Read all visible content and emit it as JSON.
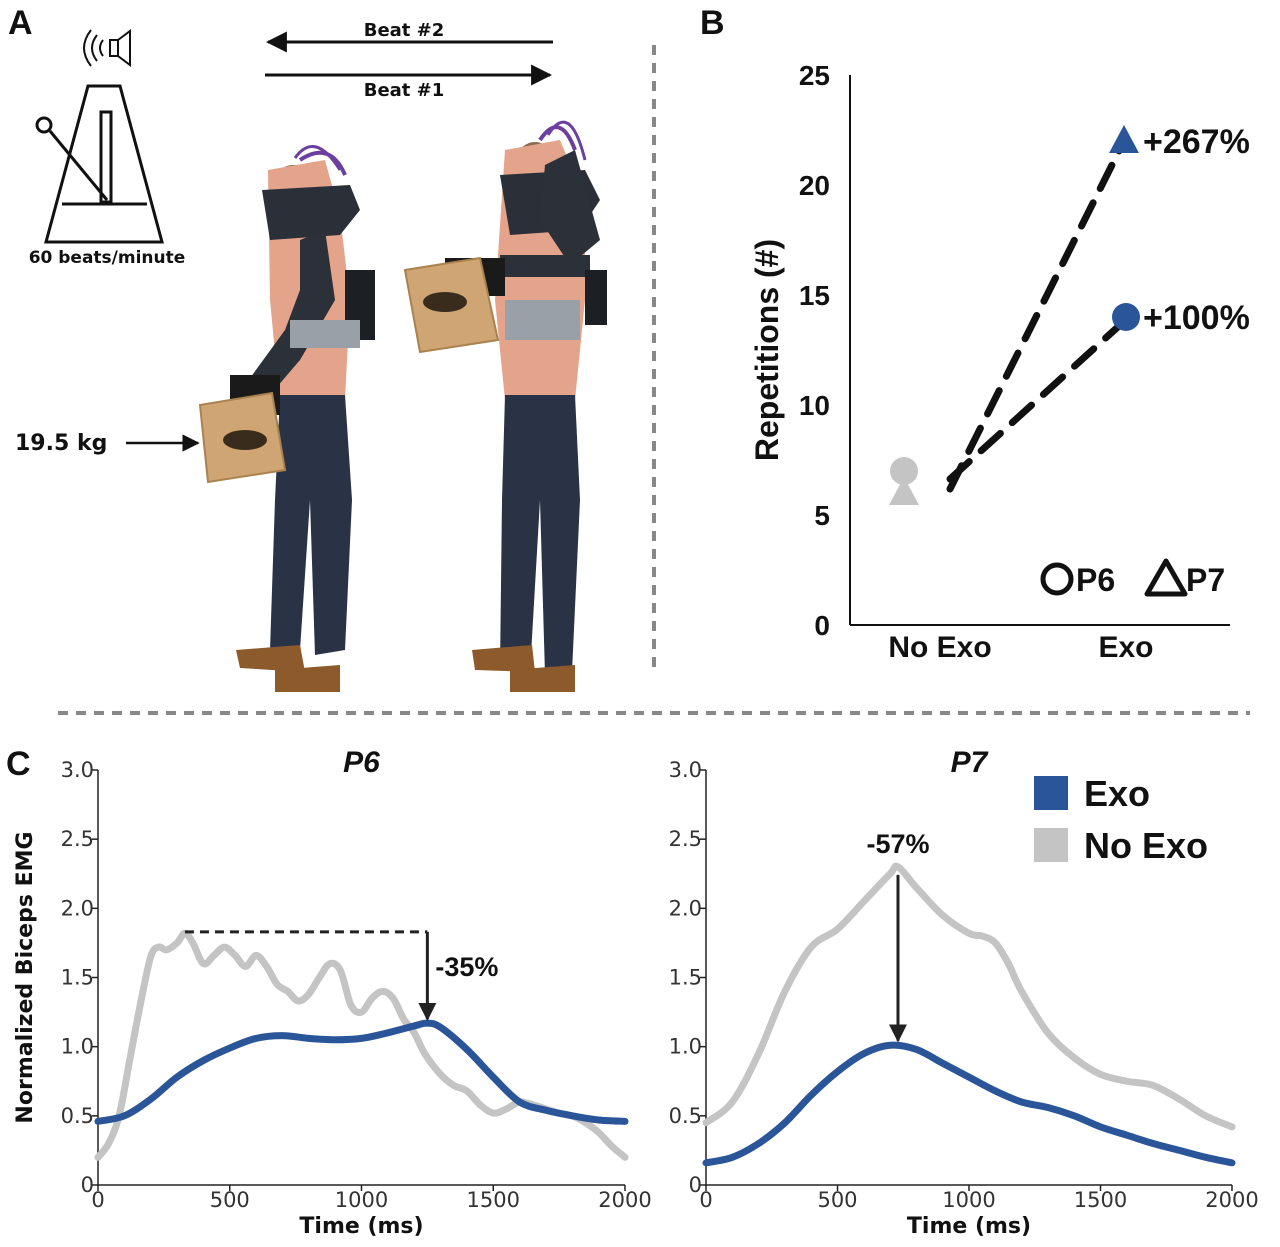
{
  "panels": {
    "a": {
      "letter": "A",
      "beat2": "Beat #2",
      "beat1": "Beat #1",
      "metronome_label": "60 beats/minute",
      "weight_label": "19.5 kg",
      "icons": [
        "speaker-icon",
        "metronome-icon",
        "person-exoskeleton-photo"
      ]
    },
    "b": {
      "letter": "B"
    },
    "c": {
      "letter": "C"
    }
  },
  "colors": {
    "exo": "#2b5599",
    "no_exo": "#c4c4c4",
    "axis": "#111111",
    "divider": "#888888"
  },
  "chart_data": [
    {
      "id": "repetitions",
      "type": "scatter",
      "title": "",
      "xlabel": "",
      "ylabel": "Repetitions (#)",
      "categories": [
        "No Exo",
        "Exo"
      ],
      "ylim": [
        0,
        25
      ],
      "yticks": [
        0,
        5,
        10,
        15,
        20,
        25
      ],
      "grid": false,
      "legend": {
        "placement": "bottom-right",
        "entries": [
          {
            "label": "P6",
            "marker": "circle"
          },
          {
            "label": "P7",
            "marker": "triangle"
          }
        ]
      },
      "series": [
        {
          "participant": "P6",
          "marker": "circle",
          "values": [
            7,
            14
          ],
          "annotation": "+100%"
        },
        {
          "participant": "P7",
          "marker": "triangle",
          "values": [
            6,
            22
          ],
          "annotation": "+267%"
        }
      ]
    },
    {
      "id": "p6-emg",
      "type": "line",
      "title": "P6",
      "xlabel": "Time (ms)",
      "ylabel": "Normalized Biceps EMG",
      "xlim": [
        0,
        2000
      ],
      "ylim": [
        0,
        3
      ],
      "xticks": [
        0,
        500,
        1000,
        1500,
        2000
      ],
      "yticks": [
        "0",
        "0.5",
        "1.0",
        "1.5",
        "2.0",
        "2.5",
        "3.0"
      ],
      "grid": false,
      "annotation": {
        "text": "-35%",
        "x": 1250,
        "from": 1.83,
        "to": 1.17
      },
      "series": [
        {
          "name": "Exo",
          "x": [
            0,
            100,
            200,
            300,
            400,
            500,
            600,
            700,
            800,
            900,
            1000,
            1100,
            1200,
            1250,
            1300,
            1400,
            1500,
            1600,
            1700,
            1800,
            1900,
            2000
          ],
          "y": [
            0.46,
            0.5,
            0.62,
            0.78,
            0.9,
            0.99,
            1.06,
            1.08,
            1.06,
            1.05,
            1.06,
            1.1,
            1.15,
            1.17,
            1.14,
            0.98,
            0.78,
            0.6,
            0.54,
            0.5,
            0.47,
            0.46
          ]
        },
        {
          "name": "No Exo",
          "x": [
            0,
            40,
            80,
            120,
            160,
            200,
            230,
            260,
            300,
            330,
            360,
            400,
            440,
            480,
            520,
            560,
            600,
            640,
            680,
            720,
            760,
            800,
            840,
            880,
            920,
            960,
            1000,
            1040,
            1080,
            1120,
            1160,
            1200,
            1240,
            1300,
            1350,
            1400,
            1450,
            1500,
            1550,
            1600,
            1650,
            1700,
            1750,
            1800,
            1850,
            1900,
            1950,
            2000
          ],
          "y": [
            0.2,
            0.3,
            0.5,
            0.9,
            1.3,
            1.65,
            1.72,
            1.7,
            1.75,
            1.82,
            1.75,
            1.6,
            1.66,
            1.72,
            1.66,
            1.58,
            1.66,
            1.58,
            1.45,
            1.4,
            1.33,
            1.38,
            1.5,
            1.6,
            1.55,
            1.3,
            1.25,
            1.35,
            1.4,
            1.35,
            1.2,
            1.1,
            0.95,
            0.8,
            0.72,
            0.68,
            0.58,
            0.52,
            0.55,
            0.6,
            0.58,
            0.55,
            0.52,
            0.5,
            0.45,
            0.38,
            0.28,
            0.2
          ]
        }
      ]
    },
    {
      "id": "p7-emg",
      "type": "line",
      "title": "P7",
      "xlabel": "Time (ms)",
      "ylabel": "",
      "xlim": [
        0,
        2000
      ],
      "ylim": [
        0,
        3
      ],
      "xticks": [
        0,
        500,
        1000,
        1500,
        2000
      ],
      "yticks": [
        "0",
        "0.5",
        "1.0",
        "1.5",
        "2.0",
        "2.5",
        "3.0"
      ],
      "grid": false,
      "annotation": {
        "text": "-57%",
        "x": 730,
        "from": 2.3,
        "to": 1.0
      },
      "legend": {
        "placement": "top-right",
        "entries": [
          "Exo",
          "No Exo"
        ]
      },
      "series": [
        {
          "name": "Exo",
          "x": [
            0,
            100,
            200,
            300,
            400,
            500,
            600,
            700,
            800,
            900,
            1000,
            1100,
            1200,
            1300,
            1400,
            1500,
            1600,
            1700,
            1800,
            1900,
            2000
          ],
          "y": [
            0.16,
            0.2,
            0.3,
            0.45,
            0.65,
            0.82,
            0.95,
            1.01,
            0.98,
            0.88,
            0.78,
            0.68,
            0.6,
            0.56,
            0.5,
            0.42,
            0.36,
            0.3,
            0.25,
            0.2,
            0.16
          ]
        },
        {
          "name": "No Exo",
          "x": [
            0,
            100,
            200,
            300,
            400,
            500,
            600,
            700,
            730,
            800,
            900,
            1000,
            1050,
            1100,
            1150,
            1200,
            1300,
            1400,
            1500,
            1600,
            1700,
            1800,
            1900,
            2000
          ],
          "y": [
            0.45,
            0.6,
            0.95,
            1.4,
            1.72,
            1.85,
            2.05,
            2.25,
            2.3,
            2.15,
            1.95,
            1.82,
            1.8,
            1.75,
            1.6,
            1.4,
            1.1,
            0.92,
            0.8,
            0.75,
            0.72,
            0.62,
            0.5,
            0.42
          ]
        }
      ]
    }
  ]
}
